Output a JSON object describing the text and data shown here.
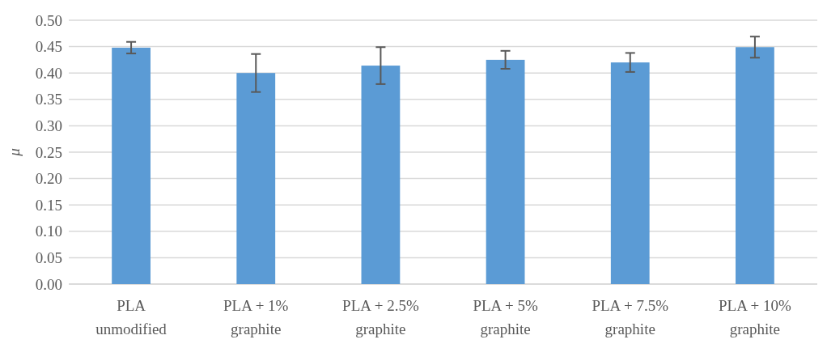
{
  "chart_data": {
    "type": "bar",
    "ylabel": "μ",
    "categories": [
      "PLA\nunmodified",
      "PLA + 1%\ngraphite",
      "PLA + 2.5%\ngraphite",
      "PLA + 5%\ngraphite",
      "PLA + 7.5%\ngraphite",
      "PLA + 10%\ngraphite"
    ],
    "values": [
      0.448,
      0.4,
      0.414,
      0.425,
      0.42,
      0.449
    ],
    "errors": [
      0.011,
      0.036,
      0.035,
      0.017,
      0.018,
      0.02
    ],
    "color": "#5b9bd5",
    "ylim": [
      0,
      0.5
    ],
    "yticks": [
      {
        "value": 0,
        "label": "0.00"
      },
      {
        "value": 0.05,
        "label": "0.05"
      },
      {
        "value": 0.1,
        "label": "0.10"
      },
      {
        "value": 0.15,
        "label": "0.15"
      },
      {
        "value": 0.2,
        "label": "0.20"
      },
      {
        "value": 0.25,
        "label": "0.25"
      },
      {
        "value": 0.3,
        "label": "0.30"
      },
      {
        "value": 0.35,
        "label": "0.35"
      },
      {
        "value": 0.4,
        "label": "0.40"
      },
      {
        "value": 0.45,
        "label": "0.45"
      },
      {
        "value": 0.5,
        "label": "0.50"
      }
    ],
    "grid": "y"
  }
}
